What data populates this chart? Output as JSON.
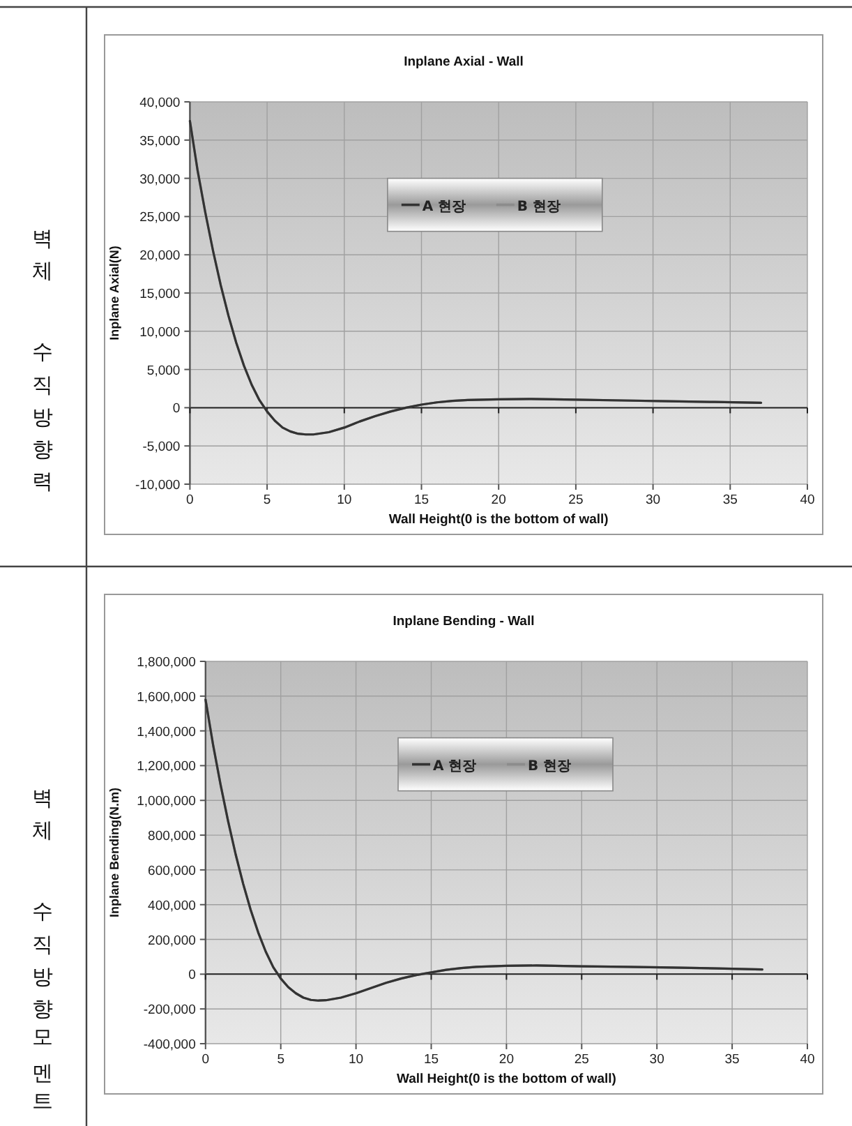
{
  "chart_data": [
    {
      "type": "line",
      "title": "Inplane Axial - Wall",
      "xlabel": "Wall Height(0 is the bottom of wall)",
      "ylabel": "Inplane Axial(N)",
      "annotations": [
        "벽체 수직방향력"
      ],
      "x": [
        0,
        0.5,
        1,
        1.5,
        2,
        2.5,
        3,
        3.5,
        4,
        4.5,
        5,
        5.5,
        6,
        6.5,
        7,
        7.5,
        8,
        9,
        10,
        11,
        12,
        13,
        14,
        15,
        16,
        17,
        18,
        20,
        22,
        25,
        28,
        31,
        34,
        37
      ],
      "series": [
        {
          "name": "B 현장",
          "color": "#8c8c8c",
          "values": [
            37500,
            31000,
            25500,
            20500,
            16000,
            12000,
            8500,
            5500,
            3000,
            1000,
            -500,
            -1700,
            -2600,
            -3100,
            -3400,
            -3500,
            -3500,
            -3200,
            -2600,
            -1800,
            -1100,
            -500,
            0,
            400,
            700,
            900,
            1000,
            1100,
            1150,
            1050,
            950,
            850,
            750,
            650
          ]
        },
        {
          "name": "A 현장",
          "color": "#333333",
          "values": [
            37500,
            31000,
            25500,
            20500,
            16000,
            12000,
            8500,
            5500,
            3000,
            1000,
            -500,
            -1700,
            -2600,
            -3100,
            -3400,
            -3500,
            -3500,
            -3200,
            -2600,
            -1800,
            -1100,
            -500,
            0,
            400,
            700,
            900,
            1000,
            1100,
            1150,
            1050,
            950,
            850,
            750,
            650
          ]
        }
      ],
      "xlim": [
        0,
        40
      ],
      "xticks": [
        0,
        5,
        10,
        15,
        20,
        25,
        30,
        35,
        40
      ],
      "ylim": [
        -10000,
        40000
      ],
      "yticks": [
        {
          "value": -10000,
          "label": "-10,000"
        },
        {
          "value": -5000,
          "label": "-5,000"
        },
        0,
        {
          "value": 5000,
          "label": "5,000"
        },
        {
          "value": 10000,
          "label": "10,000"
        },
        {
          "value": 15000,
          "label": "15,000"
        },
        {
          "value": 20000,
          "label": "20,000"
        },
        {
          "value": 25000,
          "label": "25,000"
        },
        {
          "value": 30000,
          "label": "30,000"
        },
        {
          "value": 35000,
          "label": "35,000"
        },
        {
          "value": 40000,
          "label": "40,000"
        }
      ],
      "grid": true,
      "legend": "top"
    },
    {
      "type": "line",
      "title": "Inplane Bending - Wall",
      "xlabel": "Wall Height(0 is the bottom of wall)",
      "ylabel": "Inplane Bending(N.m)",
      "annotations": [
        "벽체 수직방향모멘트"
      ],
      "x": [
        0,
        0.5,
        1,
        1.5,
        2,
        2.5,
        3,
        3.5,
        4,
        4.5,
        5,
        5.5,
        6,
        6.5,
        7,
        7.5,
        8,
        9,
        10,
        11,
        12,
        13,
        14,
        15,
        16,
        17,
        18,
        20,
        22,
        25,
        28,
        31,
        34,
        37
      ],
      "series": [
        {
          "name": "B 현장",
          "color": "#8c8c8c",
          "values": [
            1580000,
            1320000,
            1090000,
            880000,
            690000,
            520000,
            370000,
            240000,
            130000,
            40000,
            -25000,
            -75000,
            -110000,
            -135000,
            -148000,
            -152000,
            -150000,
            -135000,
            -110000,
            -80000,
            -50000,
            -25000,
            -5000,
            10000,
            25000,
            35000,
            42000,
            48000,
            50000,
            45000,
            42000,
            38000,
            33000,
            27000
          ]
        },
        {
          "name": "A 현장",
          "color": "#333333",
          "values": [
            1580000,
            1320000,
            1090000,
            880000,
            690000,
            520000,
            370000,
            240000,
            130000,
            40000,
            -25000,
            -75000,
            -110000,
            -135000,
            -148000,
            -152000,
            -150000,
            -135000,
            -110000,
            -80000,
            -50000,
            -25000,
            -5000,
            10000,
            25000,
            35000,
            42000,
            48000,
            50000,
            45000,
            42000,
            38000,
            33000,
            27000
          ]
        }
      ],
      "xlim": [
        0,
        40
      ],
      "xticks": [
        0,
        5,
        10,
        15,
        20,
        25,
        30,
        35,
        40
      ],
      "ylim": [
        -400000,
        1800000
      ],
      "yticks": [
        {
          "value": -400000,
          "label": "-400,000"
        },
        {
          "value": -200000,
          "label": "-200,000"
        },
        0,
        {
          "value": 200000,
          "label": "200,000"
        },
        {
          "value": 400000,
          "label": "400,000"
        },
        {
          "value": 600000,
          "label": "600,000"
        },
        {
          "value": 800000,
          "label": "800,000"
        },
        {
          "value": 1000000,
          "label": "1,000,000"
        },
        {
          "value": 1200000,
          "label": "1,200,000"
        },
        {
          "value": 1400000,
          "label": "1,400,000"
        },
        {
          "value": 1600000,
          "label": "1,600,000"
        },
        {
          "value": 1800000,
          "label": "1,800,000"
        }
      ],
      "grid": true,
      "legend": "top"
    }
  ]
}
